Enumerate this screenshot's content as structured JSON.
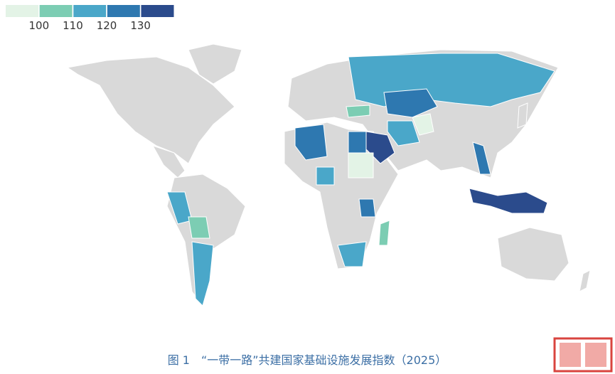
{
  "legend": {
    "colors": [
      "#e3f3e6",
      "#7ccdb3",
      "#4aa7c9",
      "#2e78b0",
      "#2b4b8c"
    ],
    "ticks": [
      100,
      110,
      120,
      130
    ]
  },
  "map": {
    "values": [
      118,
      128,
      108,
      118,
      98,
      133,
      125,
      98,
      125,
      118,
      128,
      118,
      108,
      128,
      133,
      118,
      108,
      118
    ]
  },
  "caption": "图 1　“一带一路”共建国家基础设施发展指数（2025）"
}
